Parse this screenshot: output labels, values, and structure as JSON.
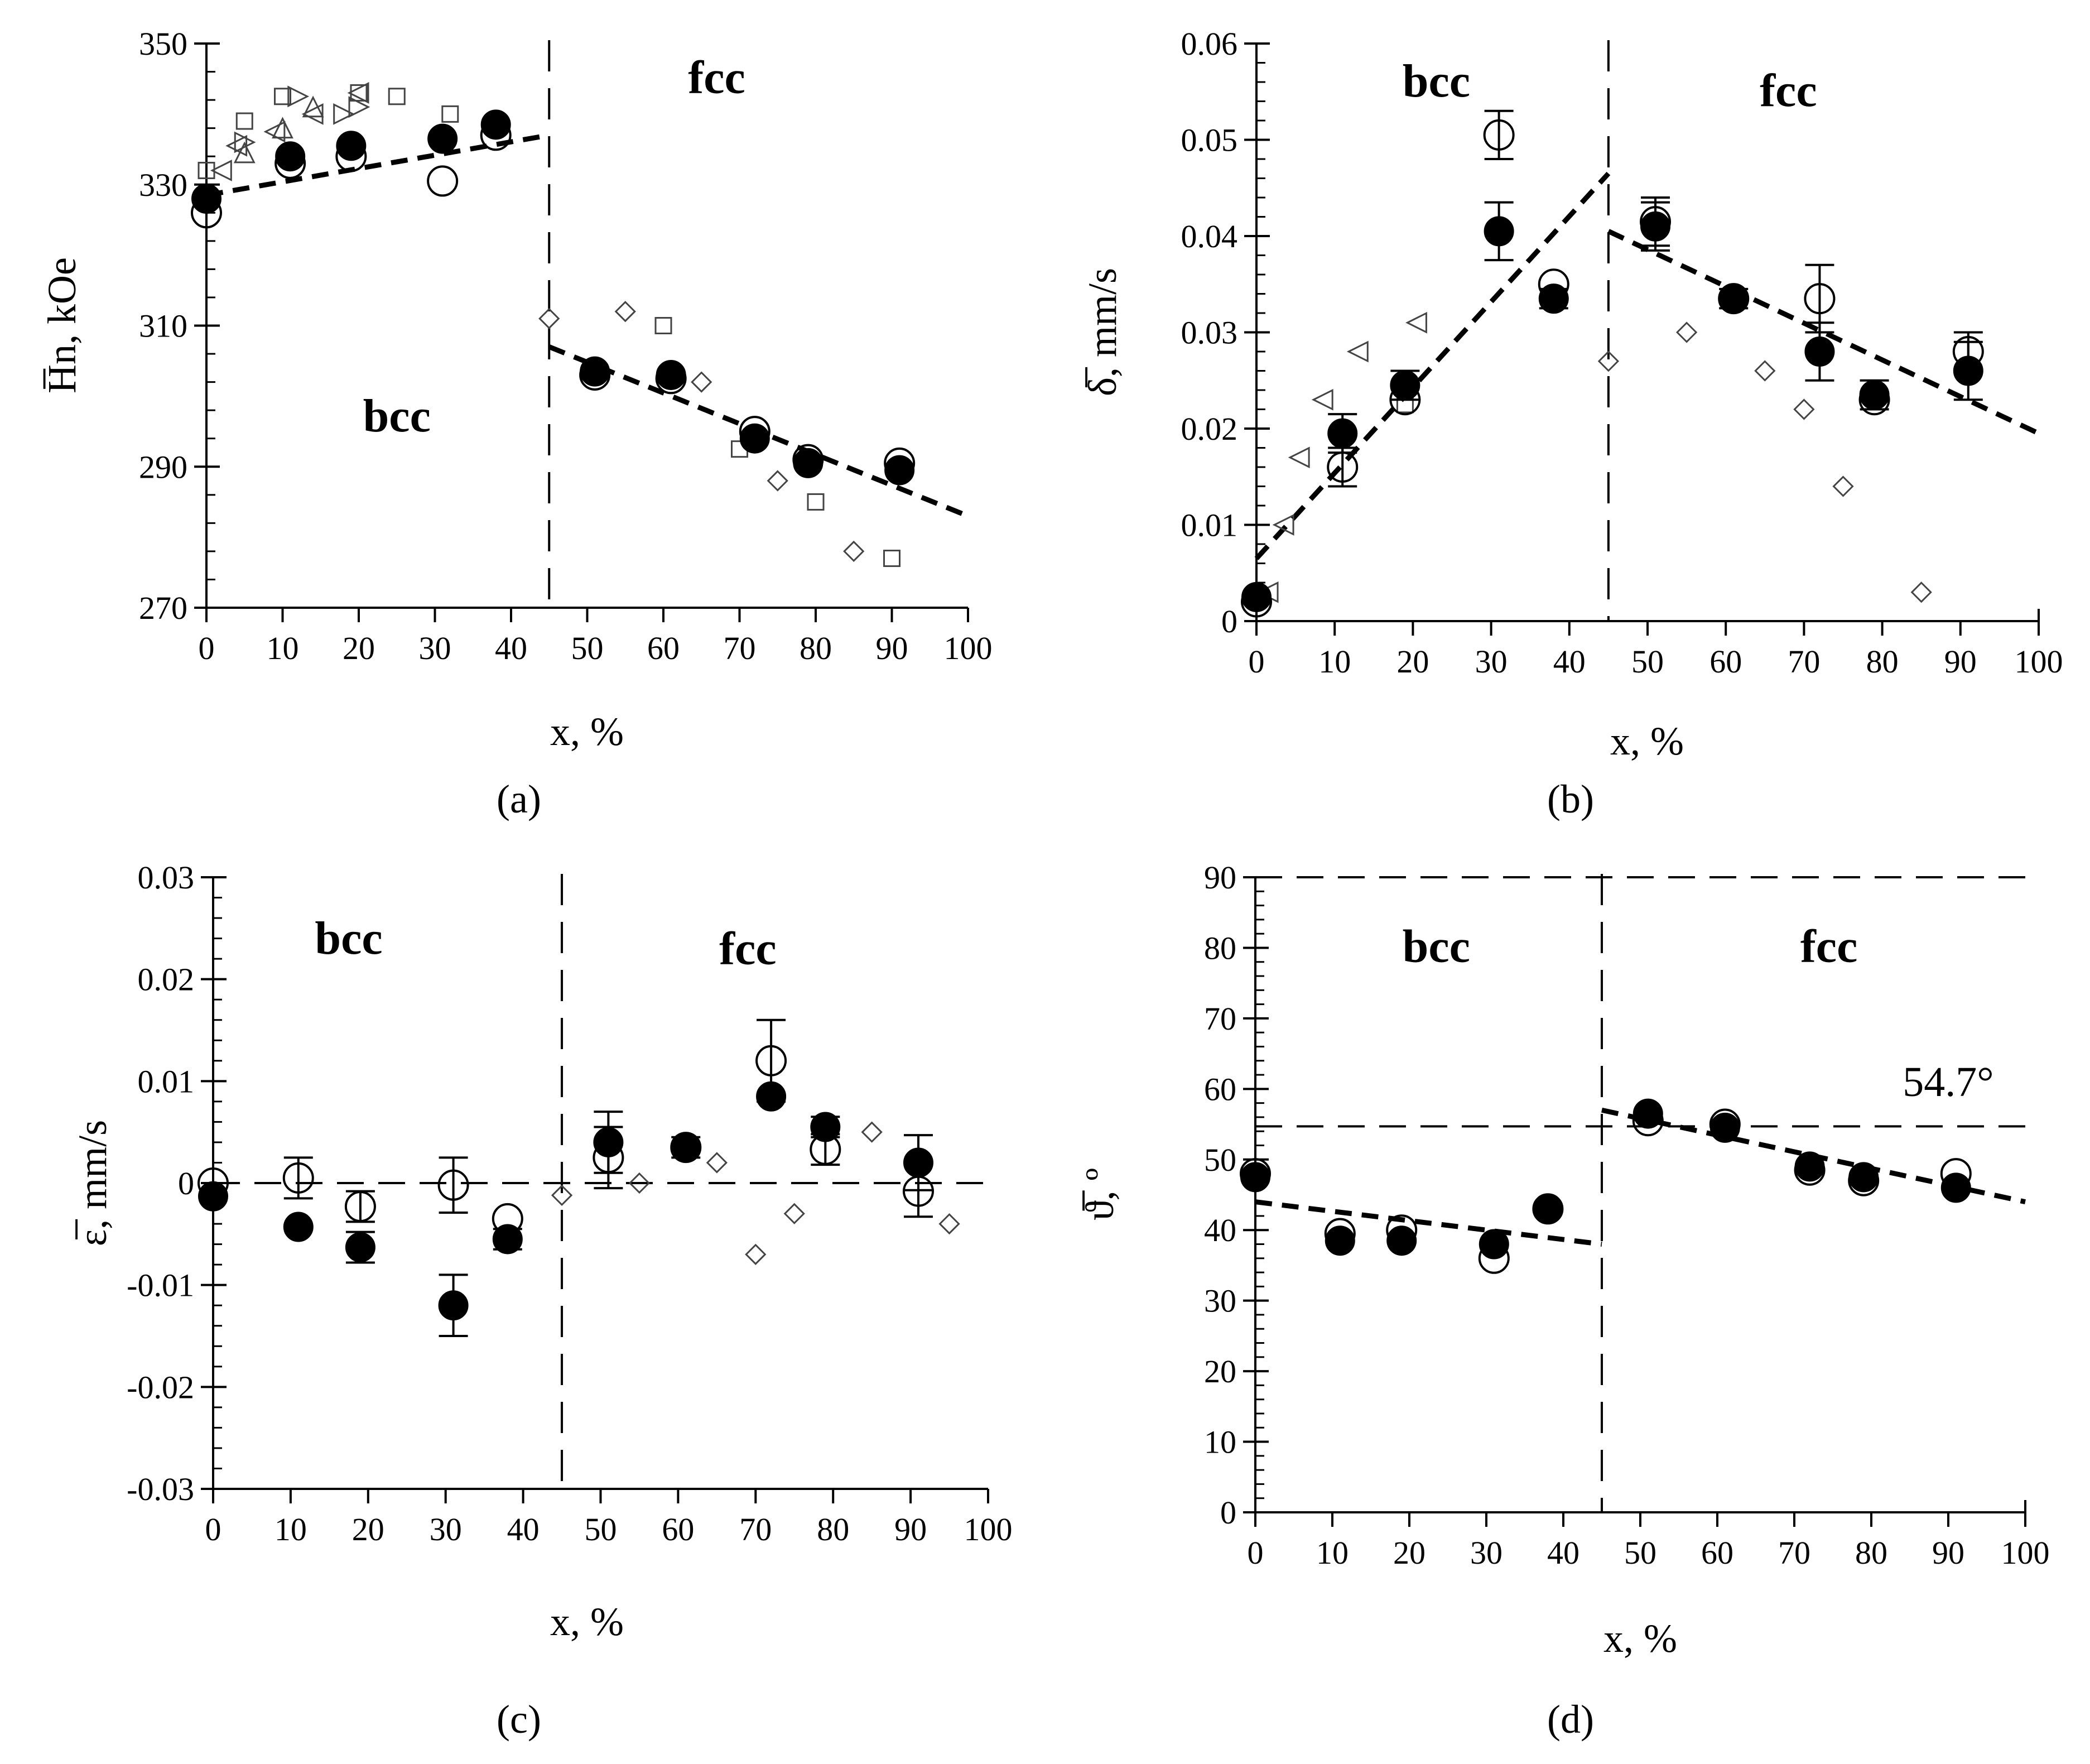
{
  "figure": {
    "panel_labels": [
      "(a)",
      "(b)",
      "(c)",
      "(d)"
    ]
  },
  "colors": {
    "ink": "#000000",
    "background": "#ffffff",
    "marker_outline": "#555555"
  },
  "chart_data": [
    {
      "id": "a",
      "type": "scatter",
      "label": "(a)",
      "title": "",
      "xlabel": "x, %",
      "ylabel": "H̅n, kOe",
      "xlim": [
        0,
        100
      ],
      "ylim": [
        270,
        350
      ],
      "x_ticks": [
        0,
        10,
        20,
        30,
        40,
        50,
        60,
        70,
        80,
        90,
        100
      ],
      "y_ticks": [
        270,
        290,
        310,
        330,
        350
      ],
      "y_tick_labels": [
        "270",
        "290",
        "310",
        "330",
        "350"
      ],
      "y_minor_step": 4,
      "phase_boundary_x": 45,
      "regions": [
        {
          "text": "fcc",
          "x": 67,
          "y": 343
        },
        {
          "text": "bcc",
          "x": 25,
          "y": 295
        }
      ],
      "trend_lines": [
        {
          "x": [
            0,
            45
          ],
          "y": [
            328.5,
            337
          ]
        },
        {
          "x": [
            45,
            100
          ],
          "y": [
            307,
            283
          ]
        }
      ],
      "series": [
        {
          "name": "filled circles",
          "marker": "filled-circle",
          "size": "large",
          "points": [
            [
              0,
              328
            ],
            [
              11,
              334
            ],
            [
              19,
              335.5
            ],
            [
              31,
              336.5
            ],
            [
              38,
              338.5
            ],
            [
              51,
              303.5
            ],
            [
              61,
              303
            ],
            [
              72,
              294
            ],
            [
              79,
              290.5
            ],
            [
              91,
              289.5
            ]
          ]
        },
        {
          "name": "open circles",
          "marker": "open-circle",
          "size": "large",
          "points": [
            [
              0,
              326
            ],
            [
              11,
              333
            ],
            [
              19,
              334
            ],
            [
              31,
              330.5
            ],
            [
              38,
              337
            ],
            [
              51,
              303
            ],
            [
              61,
              302.5
            ],
            [
              72,
              295
            ],
            [
              79,
              291
            ],
            [
              91,
              290.5
            ]
          ]
        },
        {
          "name": "open squares",
          "marker": "square",
          "points": [
            [
              0,
              332
            ],
            [
              5,
              339
            ],
            [
              10,
              342.5
            ],
            [
              20,
              343
            ],
            [
              25,
              342.5
            ],
            [
              32,
              340
            ],
            [
              60,
              310
            ],
            [
              70,
              292.5
            ],
            [
              80,
              285
            ],
            [
              90,
              277
            ]
          ]
        },
        {
          "name": "open diamonds",
          "marker": "diamond",
          "points": [
            [
              45,
              311
            ],
            [
              55,
              312
            ],
            [
              65,
              302
            ],
            [
              75,
              288
            ],
            [
              85,
              278
            ]
          ]
        },
        {
          "name": "open triangles right",
          "marker": "triangle-right",
          "points": [
            [
              5,
              336
            ],
            [
              12,
              342.5
            ],
            [
              18,
              340
            ],
            [
              20,
              341
            ]
          ]
        },
        {
          "name": "open triangles left",
          "marker": "triangle-left",
          "points": [
            [
              2,
              332
            ],
            [
              4,
              335.5
            ],
            [
              9,
              337.5
            ],
            [
              14,
              340
            ],
            [
              20,
              343
            ]
          ]
        },
        {
          "name": "open triangles up",
          "marker": "triangle-up",
          "points": [
            [
              5,
              334.5
            ],
            [
              10,
              338
            ],
            [
              14,
              341
            ]
          ]
        }
      ]
    },
    {
      "id": "b",
      "type": "scatter",
      "label": "(b)",
      "title": "",
      "xlabel": "x, %",
      "ylabel": "δ̅, mm/s",
      "xlim": [
        0,
        100
      ],
      "ylim": [
        0,
        0.06
      ],
      "x_ticks": [
        0,
        10,
        20,
        30,
        40,
        50,
        60,
        70,
        80,
        90,
        100
      ],
      "y_ticks": [
        0,
        0.01,
        0.02,
        0.03,
        0.04,
        0.05,
        0.06
      ],
      "y_tick_labels": [
        "0",
        "0.01",
        "0.02",
        "0.03",
        "0.04",
        "0.05",
        "0.06"
      ],
      "y_minor_step": 0.002,
      "phase_boundary_x": 45,
      "regions": [
        {
          "text": "bcc",
          "x": 23,
          "y": 0.0545
        },
        {
          "text": "fcc",
          "x": 68,
          "y": 0.0535
        }
      ],
      "trend_lines": [
        {
          "x": [
            0,
            45
          ],
          "y": [
            0.0065,
            0.0465
          ]
        },
        {
          "x": [
            45,
            100
          ],
          "y": [
            0.0405,
            0.0195
          ]
        }
      ],
      "series": [
        {
          "name": "filled circles",
          "marker": "filled-circle",
          "size": "large",
          "points": [
            [
              0,
              0.0025
            ],
            [
              11,
              0.0195
            ],
            [
              19,
              0.0245
            ],
            [
              31,
              0.0405
            ],
            [
              38,
              0.0335
            ],
            [
              51,
              0.041
            ],
            [
              61,
              0.0335
            ],
            [
              72,
              0.028
            ],
            [
              79,
              0.0235
            ],
            [
              91,
              0.026
            ]
          ],
          "errors": [
            0,
            0.002,
            0.0015,
            0.003,
            0.001,
            0.0025,
            0.001,
            0.003,
            0.0015,
            0.003
          ]
        },
        {
          "name": "open circles",
          "marker": "open-circle",
          "size": "large",
          "points": [
            [
              0,
              0.002
            ],
            [
              11,
              0.016
            ],
            [
              19,
              0.023
            ],
            [
              31,
              0.0505
            ],
            [
              38,
              0.035
            ],
            [
              51,
              0.0415
            ],
            [
              61,
              0.0335
            ],
            [
              72,
              0.0335
            ],
            [
              79,
              0.023
            ],
            [
              91,
              0.028
            ]
          ],
          "errors": [
            0,
            0.002,
            0,
            0.0025,
            0,
            0.0025,
            0,
            0.0035,
            0,
            0.002
          ]
        },
        {
          "name": "open diamonds",
          "marker": "diamond",
          "points": [
            [
              45,
              0.027
            ],
            [
              55,
              0.03
            ],
            [
              65,
              0.026
            ],
            [
              70,
              0.022
            ],
            [
              75,
              0.014
            ],
            [
              85,
              0.003
            ]
          ]
        },
        {
          "name": "open triangles left",
          "marker": "triangle-left",
          "points": [
            [
              1.5,
              0.003
            ],
            [
              3.5,
              0.01
            ],
            [
              5.5,
              0.017
            ],
            [
              8.5,
              0.023
            ],
            [
              13,
              0.028
            ],
            [
              20.5,
              0.031
            ]
          ]
        },
        {
          "name": "open squares",
          "marker": "square",
          "points": [
            [
              19,
              0.0225
            ]
          ]
        }
      ]
    },
    {
      "id": "c",
      "type": "scatter",
      "label": "(c)",
      "title": "",
      "xlabel": "x, %",
      "ylabel": "ε̅, mm/s",
      "xlim": [
        0,
        100
      ],
      "ylim": [
        -0.03,
        0.03
      ],
      "x_ticks": [
        0,
        10,
        20,
        30,
        40,
        50,
        60,
        70,
        80,
        90,
        100
      ],
      "y_ticks": [
        -0.03,
        -0.02,
        -0.01,
        0,
        0.01,
        0.02,
        0.03
      ],
      "y_tick_labels": [
        "-0.03",
        "-0.02",
        "-0.01",
        "0",
        "0.01",
        "0.02",
        "0.03"
      ],
      "y_minor_step": 0.002,
      "phase_boundary_x": 45,
      "regions": [
        {
          "text": "bcc",
          "x": 17.5,
          "y": 0.0225
        },
        {
          "text": "fcc",
          "x": 69,
          "y": 0.0215
        }
      ],
      "reference_lines": [
        {
          "orientation": "horizontal",
          "y": 0,
          "x_range": [
            0,
            100
          ]
        }
      ],
      "series": [
        {
          "name": "filled circles",
          "marker": "filled-circle",
          "size": "large",
          "points": [
            [
              0,
              -0.0013
            ],
            [
              11,
              -0.0043
            ],
            [
              19,
              -0.0063
            ],
            [
              31,
              -0.012
            ],
            [
              38,
              -0.0055
            ],
            [
              51,
              0.004
            ],
            [
              61,
              0.0035
            ],
            [
              72,
              0.0085
            ],
            [
              79,
              0.0055
            ],
            [
              91,
              0.002
            ]
          ],
          "errors": [
            0,
            0,
            0.0015,
            0.003,
            0.001,
            0.003,
            0.001,
            0,
            0.001,
            0.0027
          ]
        },
        {
          "name": "open circles",
          "marker": "open-circle",
          "size": "large",
          "points": [
            [
              0,
              0
            ],
            [
              11,
              0.0005
            ],
            [
              19,
              -0.0023
            ],
            [
              31,
              -0.0002
            ],
            [
              38,
              -0.0035
            ],
            [
              51,
              0.0025
            ],
            [
              61,
              0.0035
            ],
            [
              72,
              0.012
            ],
            [
              79,
              0.0033
            ],
            [
              91,
              -0.0008
            ]
          ],
          "errors": [
            0,
            0.002,
            0.0015,
            0.0027,
            0,
            0.003,
            0,
            0.004,
            0.0015,
            0.0025
          ]
        },
        {
          "name": "open diamonds",
          "marker": "diamond",
          "points": [
            [
              45,
              -0.0012
            ],
            [
              55,
              0
            ],
            [
              65,
              0.002
            ],
            [
              70,
              -0.007
            ],
            [
              75,
              -0.003
            ],
            [
              85,
              0.005
            ],
            [
              95,
              -0.004
            ]
          ]
        }
      ]
    },
    {
      "id": "d",
      "type": "scatter",
      "label": "(d)",
      "title": "",
      "xlabel": "x, %",
      "ylabel": "ϑ̅, º",
      "xlim": [
        0,
        100
      ],
      "ylim": [
        0,
        90
      ],
      "x_ticks": [
        0,
        10,
        20,
        30,
        40,
        50,
        60,
        70,
        80,
        90,
        100
      ],
      "y_ticks": [
        0,
        10,
        20,
        30,
        40,
        50,
        60,
        70,
        80,
        90
      ],
      "y_tick_labels": [
        "0",
        "10",
        "20",
        "30",
        "40",
        "50",
        "60",
        "70",
        "80",
        "90"
      ],
      "y_minor_step": 2,
      "phase_boundary_x": 45,
      "regions": [
        {
          "text": "bcc",
          "x": 23.5,
          "y": 78
        },
        {
          "text": "fcc",
          "x": 74.5,
          "y": 78
        }
      ],
      "annotation": {
        "text": "54.7°",
        "x": 90,
        "y": 59
      },
      "reference_lines": [
        {
          "orientation": "horizontal",
          "y": 90,
          "x_range": [
            0,
            100
          ]
        },
        {
          "orientation": "horizontal",
          "y": 54.7,
          "x_range": [
            0,
            100
          ]
        }
      ],
      "trend_lines": [
        {
          "x": [
            0,
            45
          ],
          "y": [
            44,
            38
          ]
        },
        {
          "x": [
            45,
            100
          ],
          "y": [
            57,
            44
          ]
        }
      ],
      "series": [
        {
          "name": "open circles",
          "marker": "open-circle",
          "size": "large",
          "points": [
            [
              0,
              48
            ],
            [
              11,
              39.5
            ],
            [
              19,
              40
            ],
            [
              31,
              36
            ],
            [
              38,
              43
            ],
            [
              51,
              55.5
            ],
            [
              61,
              55
            ],
            [
              72,
              48.5
            ],
            [
              79,
              47
            ],
            [
              91,
              48
            ]
          ]
        },
        {
          "name": "filled circles",
          "marker": "filled-circle",
          "size": "large",
          "points": [
            [
              0,
              47.5
            ],
            [
              11,
              38.5
            ],
            [
              19,
              38.5
            ],
            [
              31,
              38
            ],
            [
              38,
              43
            ],
            [
              51,
              56.5
            ],
            [
              61,
              54.5
            ],
            [
              72,
              49
            ],
            [
              79,
              47.5
            ],
            [
              91,
              46
            ]
          ]
        }
      ]
    }
  ]
}
